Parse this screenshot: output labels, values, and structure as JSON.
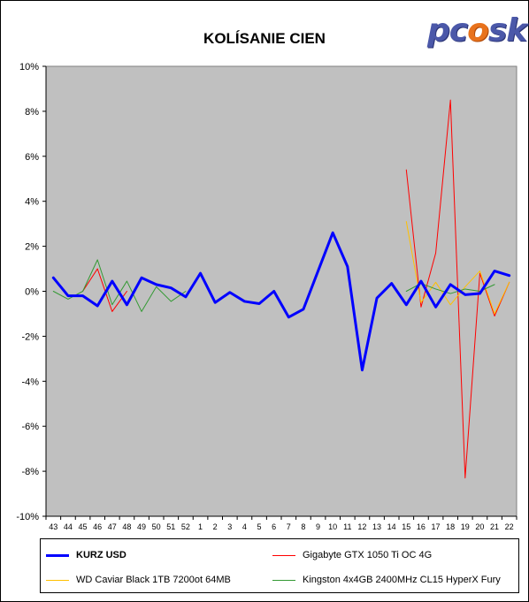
{
  "logo": {
    "pre": "pc",
    "flame": "o",
    "post": "sk"
  },
  "chart_data": {
    "type": "line",
    "title": "KOLÍSANIE CIEN",
    "xlabel": "",
    "ylabel": "",
    "ylim": [
      -10,
      10
    ],
    "yticks": [
      "10%",
      "8%",
      "6%",
      "4%",
      "2%",
      "0%",
      "-2%",
      "-4%",
      "-6%",
      "-8%",
      "-10%"
    ],
    "ytick_values": [
      10,
      8,
      6,
      4,
      2,
      0,
      -2,
      -4,
      -6,
      -8,
      -10
    ],
    "categories": [
      "43",
      "44",
      "45",
      "46",
      "47",
      "48",
      "49",
      "50",
      "51",
      "52",
      "1",
      "2",
      "3",
      "4",
      "5",
      "6",
      "7",
      "8",
      "9",
      "10",
      "11",
      "12",
      "13",
      "14",
      "15",
      "16",
      "17",
      "18",
      "19",
      "20",
      "21",
      "22"
    ],
    "grid": false,
    "plot_background": "#c0c0c0",
    "legend_position": "bottom",
    "series": [
      {
        "name": "KURZ USD",
        "color": "#0000ff",
        "width": 3,
        "values": [
          0.6,
          -0.2,
          -0.2,
          -0.65,
          0.45,
          -0.6,
          0.6,
          0.3,
          0.15,
          -0.25,
          0.8,
          -0.5,
          -0.05,
          -0.45,
          -0.55,
          0.0,
          -1.15,
          -0.8,
          0.9,
          2.6,
          1.1,
          -3.5,
          -0.3,
          0.35,
          -0.6,
          0.45,
          -0.7,
          0.3,
          -0.15,
          -0.1,
          0.9,
          0.7
        ]
      },
      {
        "name": "Gigabyte GTX 1050 Ti OC 4G",
        "color": "#ff0000",
        "width": 1,
        "values": [
          null,
          null,
          0.0,
          1.0,
          -0.9,
          0.0,
          null,
          null,
          null,
          null,
          null,
          null,
          null,
          null,
          null,
          null,
          null,
          null,
          null,
          null,
          null,
          null,
          null,
          null,
          5.4,
          -0.7,
          1.7,
          8.5,
          -8.3,
          0.8,
          -1.1,
          0.4
        ]
      },
      {
        "name": "WD Caviar Black 1TB 7200ot 64MB",
        "color": "#ffc000",
        "width": 1,
        "values": [
          null,
          null,
          null,
          null,
          null,
          null,
          null,
          null,
          null,
          null,
          null,
          null,
          null,
          null,
          null,
          null,
          null,
          null,
          null,
          null,
          null,
          null,
          null,
          null,
          3.1,
          -0.5,
          0.4,
          -0.6,
          0.2,
          0.9,
          -1.0,
          0.4
        ]
      },
      {
        "name": "Kingston 4x4GB 2400MHz CL15 HyperX Fury",
        "color": "#339933",
        "width": 1,
        "values": [
          0.0,
          -0.35,
          0.0,
          1.4,
          -0.6,
          0.45,
          -0.9,
          0.2,
          -0.45,
          0.0,
          null,
          null,
          null,
          null,
          null,
          null,
          null,
          null,
          null,
          null,
          null,
          null,
          null,
          null,
          0.0,
          0.35,
          0.1,
          -0.1,
          0.1,
          0.0,
          0.3,
          null
        ]
      }
    ]
  }
}
